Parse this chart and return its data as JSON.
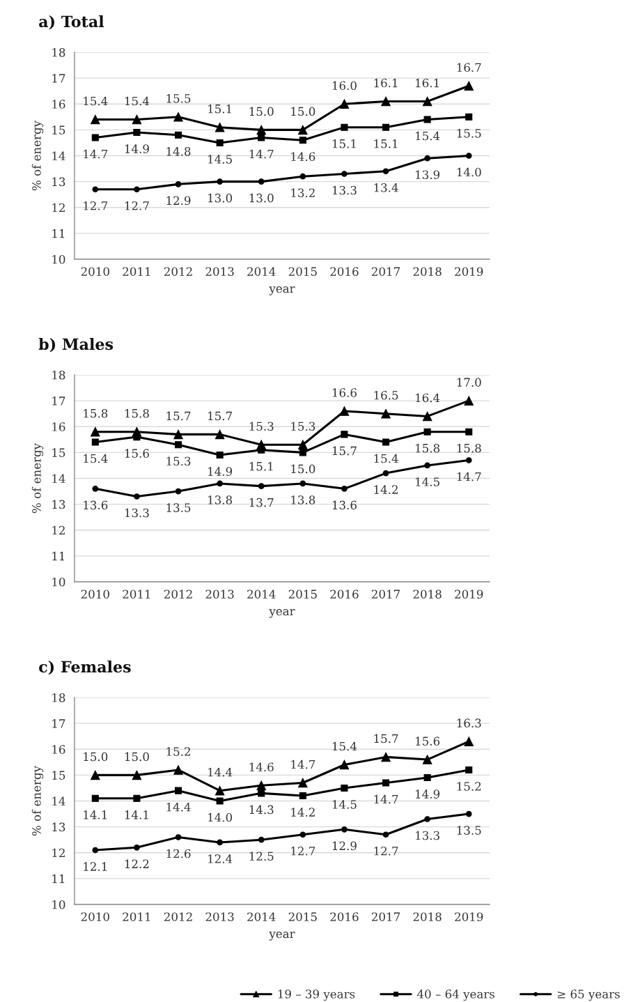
{
  "chart_data": [
    {
      "type": "line",
      "title": "a) Total",
      "xlabel": "year",
      "ylabel": "% of energy",
      "categories": [
        "2010",
        "2011",
        "2012",
        "2013",
        "2014",
        "2015",
        "2016",
        "2017",
        "2018",
        "2019"
      ],
      "ylim": [
        10,
        18
      ],
      "yticks": [
        10,
        11,
        12,
        13,
        14,
        15,
        16,
        17,
        18
      ],
      "grid": "y",
      "line_style": "solid",
      "series": [
        {
          "color": "#000000",
          "marker": "triangle",
          "values": [
            15.4,
            15.4,
            15.5,
            15.1,
            15.0,
            15.0,
            16.0,
            16.1,
            16.1,
            16.7
          ],
          "value_labels": [
            "15.4",
            "15.4",
            "15.5",
            "15.1",
            "15.0",
            "15.0",
            "16.0",
            "16.1",
            "16.1",
            "16.7"
          ]
        },
        {
          "color": "#000000",
          "marker": "square",
          "values": [
            14.7,
            14.9,
            14.8,
            14.5,
            14.7,
            14.6,
            15.1,
            15.1,
            15.4,
            15.5
          ],
          "value_labels": [
            "14.7",
            "14.9",
            "14.8",
            "14.5",
            "14.7",
            "14.6",
            "15.1",
            "15.1",
            "15.4",
            "15.5"
          ]
        },
        {
          "color": "#000000",
          "marker": "circle",
          "values": [
            12.7,
            12.7,
            12.9,
            13.0,
            13.0,
            13.2,
            13.3,
            13.4,
            13.9,
            14.0
          ],
          "value_labels": [
            "12.7",
            "12.7",
            "12.9",
            "13.0",
            "13.0",
            "13.2",
            "13.3",
            "13.4",
            "13.9",
            "14.0"
          ]
        }
      ]
    },
    {
      "type": "line",
      "title": "b) Males",
      "xlabel": "year",
      "ylabel": "% of energy",
      "categories": [
        "2010",
        "2011",
        "2012",
        "2013",
        "2014",
        "2015",
        "2016",
        "2017",
        "2018",
        "2019"
      ],
      "ylim": [
        10,
        18
      ],
      "yticks": [
        10,
        11,
        12,
        13,
        14,
        15,
        16,
        17,
        18
      ],
      "grid": "y",
      "line_style": "solid",
      "series": [
        {
          "color": "#000000",
          "marker": "triangle",
          "values": [
            15.8,
            15.8,
            15.7,
            15.7,
            15.3,
            15.3,
            16.6,
            16.5,
            16.4,
            17.0
          ],
          "value_labels": [
            "15.8",
            "15.8",
            "15.7",
            "15.7",
            "15.3",
            "15.3",
            "16.6",
            "16.5",
            "16.4",
            "17.0"
          ]
        },
        {
          "color": "#000000",
          "marker": "square",
          "values": [
            15.4,
            15.6,
            15.3,
            14.9,
            15.1,
            15.0,
            15.7,
            15.4,
            15.8,
            15.8
          ],
          "value_labels": [
            "15.4",
            "15.6",
            "15.3",
            "14.9",
            "15.1",
            "15.0",
            "15.7",
            "15.4",
            "15.8",
            "15.8"
          ]
        },
        {
          "color": "#000000",
          "marker": "circle",
          "values": [
            13.6,
            13.3,
            13.5,
            13.8,
            13.7,
            13.8,
            13.6,
            14.2,
            14.5,
            14.7
          ],
          "value_labels": [
            "13.6",
            "13.3",
            "13.5",
            "13.8",
            "13.7",
            "13.8",
            "13.6",
            "14.2",
            "14.5",
            "14.7"
          ]
        }
      ]
    },
    {
      "type": "line",
      "title": "c) Females",
      "xlabel": "year",
      "ylabel": "% of energy",
      "categories": [
        "2010",
        "2011",
        "2012",
        "2013",
        "2014",
        "2015",
        "2016",
        "2017",
        "2018",
        "2019"
      ],
      "ylim": [
        10,
        18
      ],
      "yticks": [
        10,
        11,
        12,
        13,
        14,
        15,
        16,
        17,
        18
      ],
      "grid": "y",
      "line_style": "solid",
      "legend": "bottom",
      "series": [
        {
          "name": "19 – 39 years",
          "color": "#000000",
          "marker": "triangle",
          "values": [
            15.0,
            15.0,
            15.2,
            14.4,
            14.6,
            14.7,
            15.4,
            15.7,
            15.6,
            16.3
          ],
          "value_labels": [
            "15.0",
            "15.0",
            "15.2",
            "14.4",
            "14.6",
            "14.7",
            "15.4",
            "15.7",
            "15.6",
            "16.3"
          ]
        },
        {
          "name": "40 – 64 years",
          "color": "#000000",
          "marker": "square",
          "values": [
            14.1,
            14.1,
            14.4,
            14.0,
            14.3,
            14.2,
            14.5,
            14.7,
            14.9,
            15.2
          ],
          "value_labels": [
            "14.1",
            "14.1",
            "14.4",
            "14.0",
            "14.3",
            "14.2",
            "14.5",
            "14.7",
            "14.9",
            "15.2"
          ]
        },
        {
          "name": "≥ 65 years",
          "color": "#000000",
          "marker": "circle",
          "values": [
            12.1,
            12.2,
            12.6,
            12.4,
            12.5,
            12.7,
            12.9,
            12.7,
            13.3,
            13.5
          ],
          "value_labels": [
            "12.1",
            "12.2",
            "12.6",
            "12.4",
            "12.5",
            "12.7",
            "12.9",
            "12.7",
            "13.3",
            "13.5"
          ]
        }
      ]
    }
  ]
}
